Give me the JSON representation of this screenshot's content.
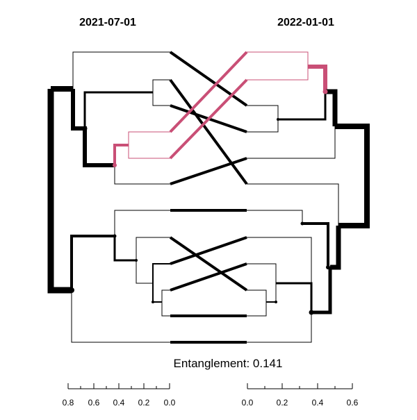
{
  "tanglegram": {
    "left_title": "2021-07-01",
    "right_title": "2022-01-01",
    "caption": "Entanglement: 0.141",
    "highlight_color": "#c94f76",
    "line_color": "#000000",
    "left_axis": {
      "ticks": [
        "0.8",
        "0.6",
        "0.4",
        "0.2",
        "0.0"
      ]
    },
    "right_axis": {
      "ticks": [
        "0.0",
        "0.2",
        "0.4",
        "0.6"
      ]
    }
  }
}
